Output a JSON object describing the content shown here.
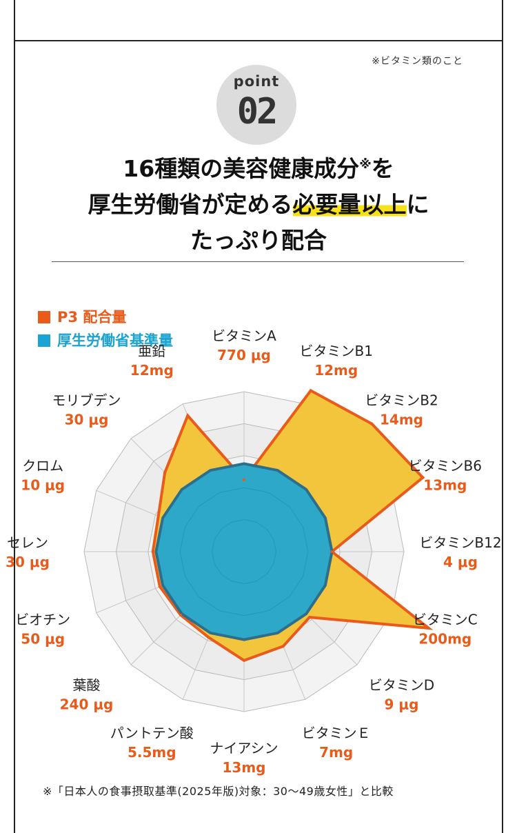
{
  "header": {
    "note": "※ビタミン類のこと",
    "badge_word": "point",
    "badge_number": "02"
  },
  "headline": {
    "line1_main": "16種類の美容健康成分",
    "line1_sup": "※",
    "line1_end": "を",
    "line2_start": "厚生労働省が定める",
    "line2_highlight": "必要量以上",
    "line2_end": "に",
    "line3": "たっぷり配合"
  },
  "legend": {
    "p3": "P3 配合量",
    "standard": "厚生労働省基準量"
  },
  "colors": {
    "p3_fill": "#f2c53d",
    "p3_stroke": "#e95b1a",
    "standard_fill": "#2ea8c8",
    "standard_stroke": "#2d6f8a",
    "highlight": "#f7e11b",
    "badge": "#dcdcdc"
  },
  "chart_data": {
    "type": "radar",
    "categories": [
      {
        "name": "ビタミンA",
        "value_label": "770 μg"
      },
      {
        "name": "ビタミンB1",
        "value_label": "12mg"
      },
      {
        "name": "ビタミンB2",
        "value_label": "14mg"
      },
      {
        "name": "ビタミンB6",
        "value_label": "13mg"
      },
      {
        "name": "ビタミンB12",
        "value_label": "4 μg"
      },
      {
        "name": "ビタミンC",
        "value_label": "200mg"
      },
      {
        "name": "ビタミンD",
        "value_label": "9 μg"
      },
      {
        "name": "ビタミンＥ",
        "value_label": "7mg"
      },
      {
        "name": "ナイアシン",
        "value_label": "13mg"
      },
      {
        "name": "パントテン酸",
        "value_label": "5.5mg"
      },
      {
        "name": "葉酸",
        "value_label": "240 μg"
      },
      {
        "name": "ビオチン",
        "value_label": "50 μg"
      },
      {
        "name": "セレン",
        "value_label": "30 μg"
      },
      {
        "name": "クロム",
        "value_label": "10 μg"
      },
      {
        "name": "モリブデン",
        "value_label": "30 μg"
      },
      {
        "name": "亜鉛",
        "value_label": "12mg"
      }
    ],
    "series": [
      {
        "name": "P3 配合量",
        "values": [
          0.45,
          1.09,
          1.13,
          1.21,
          0.55,
          1.25,
          0.58,
          0.64,
          0.68,
          0.58,
          0.56,
          0.57,
          0.57,
          0.58,
          0.7,
          0.92
        ]
      },
      {
        "name": "厚生労働省基準量",
        "values": [
          0.55,
          0.55,
          0.55,
          0.55,
          0.55,
          0.55,
          0.55,
          0.55,
          0.55,
          0.55,
          0.55,
          0.55,
          0.55,
          0.55,
          0.55,
          0.55
        ]
      }
    ],
    "grid_rings": 5,
    "grid": true
  },
  "footnote": "※「日本人の食事摂取基準(2025年版)対象：30〜49歳女性」と比較"
}
